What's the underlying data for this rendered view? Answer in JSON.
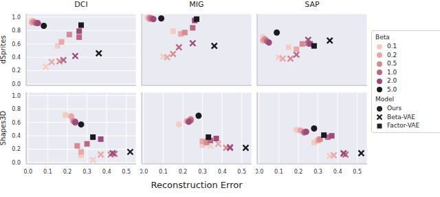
{
  "chart_data": {
    "type": "scatter",
    "columns": [
      "DCI",
      "MIG",
      "SAP"
    ],
    "rows": [
      "dSprites",
      "Shapes3D"
    ],
    "x_label": "Reconstruction Error",
    "xlim": [
      -0.01,
      0.55
    ],
    "xticks": [
      {
        "value": 0,
        "label": "0.0"
      },
      {
        "value": 0.1,
        "label": "0.1"
      },
      {
        "value": 0.2,
        "label": "0.2"
      },
      {
        "value": 0.3,
        "label": "0.3"
      },
      {
        "value": 0.4,
        "label": "0.4"
      },
      {
        "value": 0.5,
        "label": "0.5"
      }
    ],
    "ylim": [
      -0.02,
      1.05
    ],
    "yticks": [
      {
        "value": 0,
        "label": "0.0"
      },
      {
        "value": 0.2,
        "label": "0.2"
      },
      {
        "value": 0.4,
        "label": "0.4"
      },
      {
        "value": 0.6,
        "label": "0.6"
      },
      {
        "value": 0.8,
        "label": "0.8"
      },
      {
        "value": 1,
        "label": "1.0"
      }
    ],
    "grid": true,
    "legend": "right",
    "beta_title": "Beta",
    "betas": [
      {
        "name": "0.1",
        "color": "#f3cdc4"
      },
      {
        "name": "0.2",
        "color": "#e8a9a6"
      },
      {
        "name": "0.5",
        "color": "#d68a92"
      },
      {
        "name": "1.0",
        "color": "#bb6785"
      },
      {
        "name": "2.0",
        "color": "#9a4c7a"
      },
      {
        "name": "5.0",
        "color": "#1c1a1f"
      }
    ],
    "model_title": "Model",
    "models": [
      {
        "name": "Ours",
        "marker": "circle",
        "color": "#222222"
      },
      {
        "name": "Beta-VAE",
        "marker": "x",
        "color": "#222222"
      },
      {
        "name": "Factor-VAE",
        "marker": "square",
        "color": "#222222"
      }
    ],
    "panels": [
      {
        "row": "dSprites",
        "column": "DCI",
        "series": [
          {
            "name": "Beta-VAE",
            "beta": [
              "0.1",
              "0.2",
              "0.5",
              "1.0",
              "2.0",
              "5.0"
            ],
            "x": [
              0.09,
              0.12,
              0.16,
              0.18,
              0.24,
              0.36
            ],
            "y": [
              0.26,
              0.33,
              0.34,
              0.36,
              0.42,
              0.46
            ]
          },
          {
            "name": "Factor-VAE",
            "beta": [
              "0.1",
              "0.2",
              "0.5",
              "1.0",
              "2.0",
              "5.0"
            ],
            "x": [
              0.15,
              0.17,
              0.21,
              0.26,
              0.26,
              0.27
            ],
            "y": [
              0.57,
              0.63,
              0.74,
              0.7,
              0.79,
              0.88
            ]
          },
          {
            "name": "Ours",
            "beta": [
              "0.1",
              "0.2",
              "0.5",
              "1.0",
              "2.0",
              "5.0"
            ],
            "x": [
              0.02,
              0.02,
              0.03,
              0.04,
              0.05,
              0.08
            ],
            "y": [
              0.95,
              0.92,
              0.93,
              0.91,
              0.91,
              0.87
            ]
          }
        ]
      },
      {
        "row": "dSprites",
        "column": "MIG",
        "series": [
          {
            "name": "Beta-VAE",
            "beta": [
              "0.1",
              "0.2",
              "0.5",
              "1.0",
              "2.0",
              "5.0"
            ],
            "x": [
              0.1,
              0.12,
              0.15,
              0.18,
              0.25,
              0.36
            ],
            "y": [
              0.41,
              0.4,
              0.45,
              0.55,
              0.61,
              0.57
            ]
          },
          {
            "name": "Factor-VAE",
            "beta": [
              "0.1",
              "0.2",
              "0.5",
              "1.0",
              "2.0",
              "5.0"
            ],
            "x": [
              0.15,
              0.19,
              0.21,
              0.25,
              0.26,
              0.27
            ],
            "y": [
              0.79,
              0.75,
              0.77,
              0.84,
              0.95,
              0.97
            ]
          },
          {
            "name": "Ours",
            "beta": [
              "0.1",
              "0.2",
              "0.5",
              "1.0",
              "2.0",
              "5.0"
            ],
            "x": [
              0.02,
              0.03,
              0.03,
              0.04,
              0.05,
              0.09
            ],
            "y": [
              0.99,
              0.97,
              0.99,
              0.98,
              0.97,
              0.98
            ]
          }
        ]
      },
      {
        "row": "dSprites",
        "column": "SAP",
        "series": [
          {
            "name": "Beta-VAE",
            "beta": [
              "0.1",
              "0.2",
              "0.5",
              "1.0",
              "2.0",
              "5.0"
            ],
            "x": [
              0.1,
              0.12,
              0.16,
              0.19,
              0.25,
              0.36
            ],
            "y": [
              0.4,
              0.38,
              0.38,
              0.44,
              0.66,
              0.65
            ]
          },
          {
            "name": "Factor-VAE",
            "beta": [
              "0.1",
              "0.2",
              "0.5",
              "1.0",
              "2.0",
              "5.0"
            ],
            "x": [
              0.15,
              0.19,
              0.22,
              0.25,
              0.26,
              0.28
            ],
            "y": [
              0.55,
              0.52,
              0.6,
              0.61,
              0.6,
              0.57
            ]
          },
          {
            "name": "Ours",
            "beta": [
              "0.1",
              "0.2",
              "0.5",
              "1.0",
              "2.0",
              "5.0"
            ],
            "x": [
              0.02,
              0.02,
              0.03,
              0.04,
              0.05,
              0.09
            ],
            "y": [
              0.7,
              0.65,
              0.67,
              0.64,
              0.62,
              0.77
            ]
          }
        ]
      },
      {
        "row": "Shapes3D",
        "column": "DCI",
        "series": [
          {
            "name": "Beta-VAE",
            "beta": [
              "0.1",
              "0.2",
              "0.5",
              "1.0",
              "2.0",
              "5.0"
            ],
            "x": [
              0.33,
              0.37,
              0.42,
              0.44,
              0.43,
              0.52
            ],
            "y": [
              0.04,
              0.12,
              0.12,
              0.13,
              0.14,
              0.16
            ]
          },
          {
            "name": "Factor-VAE",
            "beta": [
              "0.1",
              "0.2",
              "0.5",
              "1.0",
              "2.0",
              "5.0"
            ],
            "x": [
              0.27,
              0.27,
              0.25,
              0.3,
              0.37,
              0.33
            ],
            "y": [
              0.11,
              0.16,
              0.25,
              0.28,
              0.35,
              0.38
            ]
          },
          {
            "name": "Ours",
            "beta": [
              "0.1",
              "0.2",
              "0.5",
              "1.0",
              "2.0",
              "5.0"
            ],
            "x": [
              0.19,
              0.22,
              0.23,
              0.24,
              0.24,
              0.27
            ],
            "y": [
              0.71,
              0.69,
              0.62,
              0.61,
              0.6,
              0.57
            ]
          }
        ]
      },
      {
        "row": "Shapes3D",
        "column": "MIG",
        "series": [
          {
            "name": "Beta-VAE",
            "beta": [
              "0.1",
              "0.2",
              "0.5",
              "1.0",
              "2.0",
              "5.0"
            ],
            "x": [
              0.34,
              0.38,
              0.42,
              0.44,
              0.44,
              0.52
            ],
            "y": [
              0.25,
              0.28,
              0.22,
              0.23,
              0.22,
              0.22
            ]
          },
          {
            "name": "Factor-VAE",
            "beta": [
              "0.1",
              "0.2",
              "0.5",
              "1.0",
              "2.0",
              "5.0"
            ],
            "x": [
              0.3,
              0.3,
              0.32,
              0.34,
              0.37,
              0.33
            ],
            "y": [
              0.26,
              0.32,
              0.3,
              0.33,
              0.36,
              0.38
            ]
          },
          {
            "name": "Ours",
            "beta": [
              "0.1",
              "0.2",
              "0.5",
              "1.0",
              "2.0",
              "5.0"
            ],
            "x": [
              0.18,
              0.22,
              0.24,
              0.24,
              0.23,
              0.28
            ],
            "y": [
              0.57,
              0.62,
              0.65,
              0.63,
              0.61,
              0.7
            ]
          }
        ]
      },
      {
        "row": "Shapes3D",
        "column": "SAP",
        "series": [
          {
            "name": "Beta-VAE",
            "beta": [
              "0.1",
              "0.2",
              "0.5",
              "1.0",
              "2.0",
              "5.0"
            ],
            "x": [
              0.36,
              0.38,
              0.43,
              0.44,
              0.43,
              0.52
            ],
            "y": [
              0.1,
              0.11,
              0.13,
              0.12,
              0.14,
              0.14
            ]
          },
          {
            "name": "Factor-VAE",
            "beta": [
              "0.1",
              "0.2",
              "0.5",
              "1.0",
              "2.0",
              "5.0"
            ],
            "x": [
              0.28,
              0.3,
              0.31,
              0.35,
              0.37,
              0.33
            ],
            "y": [
              0.3,
              0.33,
              0.35,
              0.38,
              0.4,
              0.41
            ]
          },
          {
            "name": "Ours",
            "beta": [
              "0.1",
              "0.2",
              "0.5",
              "1.0",
              "2.0",
              "5.0"
            ],
            "x": [
              0.19,
              0.21,
              0.23,
              0.23,
              0.24,
              0.28
            ],
            "y": [
              0.49,
              0.48,
              0.46,
              0.45,
              0.46,
              0.51
            ]
          }
        ]
      }
    ]
  }
}
